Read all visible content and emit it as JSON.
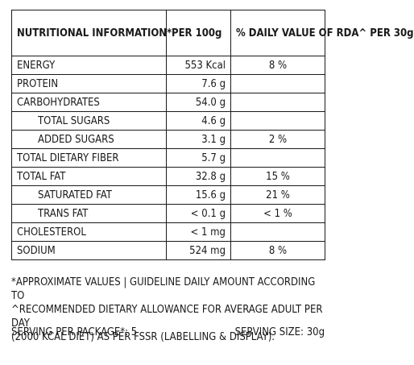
{
  "table": {
    "headers": {
      "info": "NUTRITIONAL INFORMATION*",
      "per100": "PER 100g",
      "rda": "% DAILY VALUE OF RDA^ PER 30g"
    },
    "rows": [
      {
        "name": "ENERGY",
        "per100": "553 Kcal",
        "rda": "8 %"
      },
      {
        "name": "PROTEIN",
        "per100": "7.6 g",
        "rda": ""
      },
      {
        "name": "CARBOHYDRATES",
        "per100": "54.0 g",
        "rda": ""
      },
      {
        "name": "TOTAL SUGARS",
        "per100": "4.6 g",
        "rda": ""
      },
      {
        "name": "ADDED SUGARS",
        "per100": "3.1 g",
        "rda": "2 %"
      },
      {
        "name": "TOTAL DIETARY FIBER",
        "per100": "5.7 g",
        "rda": ""
      },
      {
        "name": "TOTAL FAT",
        "per100": "32.8 g",
        "rda": "15 %"
      },
      {
        "name": "SATURATED FAT",
        "per100": "15.6 g",
        "rda": "21 %"
      },
      {
        "name": "TRANS FAT",
        "per100": "< 0.1 g",
        "rda": "< 1 %"
      },
      {
        "name": "CHOLESTEROL",
        "per100": "< 1 mg",
        "rda": ""
      },
      {
        "name": "SODIUM",
        "per100": "524 mg",
        "rda": "8 %"
      }
    ]
  },
  "footnotes": {
    "line1": "*APPROXIMATE VALUES | GUIDELINE DAILY AMOUNT ACCORDING TO",
    "line2": "^RECOMMENDED DIETARY ALLOWANCE FOR AVERAGE ADULT PER DAY",
    "line3": "(2000 KCAL DIET) AS PER FSSR (LABELLING & DISPLAY)."
  },
  "serving": {
    "per_package": "SERVING PER PACKAGE*: 5",
    "size": "SERVING SIZE: 30g"
  }
}
